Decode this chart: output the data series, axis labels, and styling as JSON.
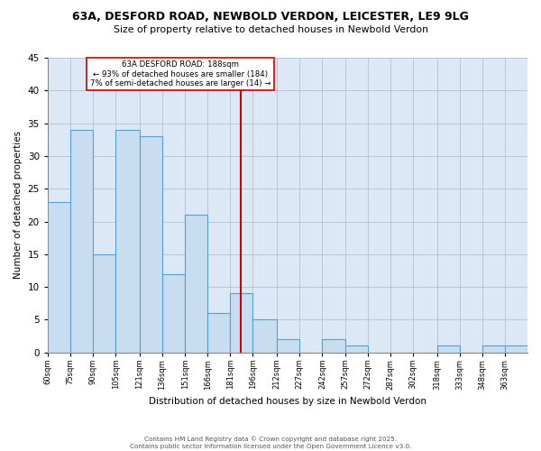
{
  "title1": "63A, DESFORD ROAD, NEWBOLD VERDON, LEICESTER, LE9 9LG",
  "title2": "Size of property relative to detached houses in Newbold Verdon",
  "xlabel": "Distribution of detached houses by size in Newbold Verdon",
  "ylabel": "Number of detached properties",
  "bin_labels": [
    "60sqm",
    "75sqm",
    "90sqm",
    "105sqm",
    "121sqm",
    "136sqm",
    "151sqm",
    "166sqm",
    "181sqm",
    "196sqm",
    "212sqm",
    "227sqm",
    "242sqm",
    "257sqm",
    "272sqm",
    "287sqm",
    "302sqm",
    "318sqm",
    "333sqm",
    "348sqm",
    "363sqm"
  ],
  "bin_edges": [
    60,
    75,
    90,
    105,
    121,
    136,
    151,
    166,
    181,
    196,
    212,
    227,
    242,
    257,
    272,
    287,
    302,
    318,
    333,
    348,
    363,
    378
  ],
  "bar_heights": [
    23,
    34,
    15,
    34,
    33,
    12,
    21,
    6,
    9,
    5,
    2,
    0,
    2,
    1,
    0,
    0,
    0,
    1,
    0,
    1,
    1
  ],
  "bar_color": "#c8ddf0",
  "bar_edge_color": "#5a9fd4",
  "reference_line_x": 188,
  "reference_line_color": "#cc0000",
  "annotation_title": "63A DESFORD ROAD: 188sqm",
  "annotation_line1": "← 93% of detached houses are smaller (184)",
  "annotation_line2": "7% of semi-detached houses are larger (14) →",
  "annotation_box_color": "#ffffff",
  "annotation_box_edge": "#cc0000",
  "ylim": [
    0,
    45
  ],
  "yticks": [
    0,
    5,
    10,
    15,
    20,
    25,
    30,
    35,
    40,
    45
  ],
  "background_color": "#dce8f5",
  "footer1": "Contains HM Land Registry data © Crown copyright and database right 2025.",
  "footer2": "Contains public sector information licensed under the Open Government Licence v3.0."
}
